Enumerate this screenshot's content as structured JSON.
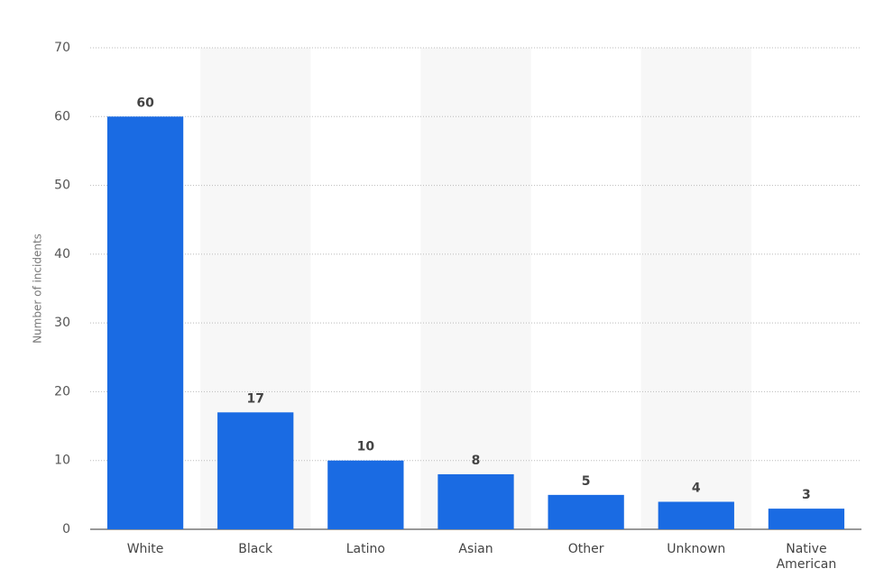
{
  "chart_data": {
    "type": "bar",
    "y_label": "Number of incidents",
    "categories": [
      "White",
      "Black",
      "Latino",
      "Asian",
      "Other",
      "Unknown",
      "Native American"
    ],
    "values": [
      60,
      17,
      10,
      8,
      5,
      4,
      3
    ],
    "color": "#1a6be3",
    "ylim": [
      0,
      70
    ],
    "yticks": [
      0,
      10,
      20,
      30,
      40,
      50,
      60,
      70
    ],
    "grid": true
  }
}
